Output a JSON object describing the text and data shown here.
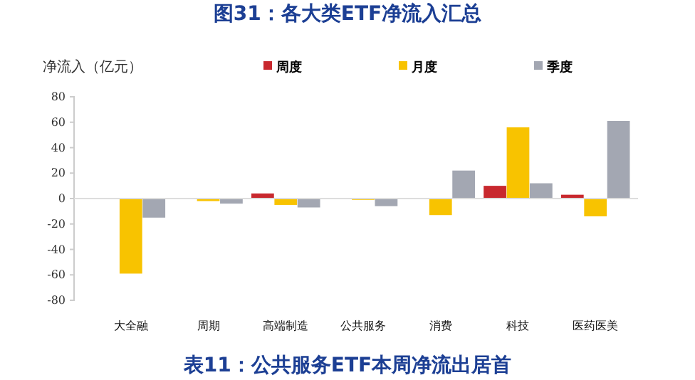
{
  "chart_data": {
    "type": "bar",
    "title": "图31：各大类ETF净流入汇总",
    "ylabel": "净流入（亿元）",
    "categories": [
      "大全融",
      "周期",
      "高端制造",
      "公共服务",
      "消费",
      "科技",
      "医药医美"
    ],
    "series": [
      {
        "name": "周度",
        "color": "#c8282e",
        "values": [
          0,
          0,
          4,
          0,
          0,
          10,
          3
        ]
      },
      {
        "name": "月度",
        "color": "#f8c300",
        "values": [
          -59,
          -2,
          -5,
          -1,
          -13,
          56,
          -14
        ]
      },
      {
        "name": "季度",
        "color": "#a3a7b2",
        "values": [
          -15,
          -4,
          -7,
          -6,
          22,
          12,
          61
        ]
      }
    ],
    "ylim": [
      -80,
      80
    ],
    "yticks": [
      -80,
      -60,
      -40,
      -20,
      0,
      20,
      40,
      60,
      80
    ],
    "legend": "top",
    "annotations": [
      "表11：公共服务ETF本周净流出居首"
    ]
  }
}
